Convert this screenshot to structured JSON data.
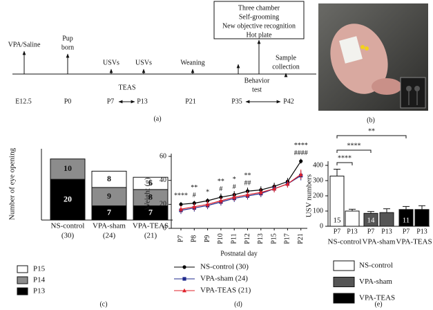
{
  "timeline": {
    "top_labels": [
      [
        "VPA/Saline"
      ],
      [
        "Pup",
        "born"
      ],
      [
        "USVs"
      ],
      [
        "USVs"
      ],
      [
        "Weaning"
      ],
      [
        "Sample",
        "collection"
      ]
    ],
    "time_labels": [
      "E12.5",
      "P0",
      "P7",
      "P13",
      "P21",
      "P35",
      "P42"
    ],
    "treatment": "TEAS",
    "behavior": [
      "Behavior",
      "test"
    ],
    "behavior_box": [
      "Three chamber",
      "Self-grooming",
      "New objective recognition",
      "Hot plate"
    ]
  },
  "panel_labels": [
    "(a)",
    "(b)",
    "(c)",
    "(d)",
    "(e)"
  ],
  "chart_data": [
    {
      "type": "stacked_bar",
      "ylabel": "Number of eye opening",
      "categories": [
        "NS-control",
        "VPA-sham",
        "VPA-TEAS"
      ],
      "category_counts": [
        "(30)",
        "(24)",
        "(21)"
      ],
      "ylim": [
        0,
        35
      ],
      "series": [
        {
          "name": "P13",
          "color": "#000000",
          "values": [
            20,
            7,
            7
          ]
        },
        {
          "name": "P14",
          "color": "#8c8c8c",
          "values": [
            10,
            9,
            8
          ]
        },
        {
          "name": "P15",
          "color": "#ffffff",
          "values": [
            0,
            8,
            6
          ]
        }
      ]
    },
    {
      "type": "line",
      "xlabel": "Postnatal day",
      "ylabel": "Weight (g)",
      "categories": [
        "P7",
        "P8",
        "P9",
        "P10",
        "P11",
        "P12",
        "P13",
        "P15",
        "P17",
        "P21"
      ],
      "ylim": [
        0,
        60
      ],
      "yticks": [
        0,
        20,
        40,
        60
      ],
      "series": [
        {
          "name": "NS-control (30)",
          "color": "#000000",
          "marker": "circle",
          "values": [
            20,
            21,
            23,
            26,
            28,
            31,
            32,
            35,
            39,
            56
          ],
          "errors": [
            2,
            2,
            2,
            3,
            3,
            3,
            3,
            3,
            3,
            2
          ]
        },
        {
          "name": "VPA-sham (24)",
          "color": "#1f2a8c",
          "marker": "square",
          "values": [
            15,
            17,
            19,
            22,
            25,
            27,
            29,
            33,
            37,
            44
          ],
          "errors": [
            3,
            3,
            3,
            3,
            3,
            3,
            3,
            3,
            3,
            4
          ]
        },
        {
          "name": "VPA-TEAS (21)",
          "color": "#e0202a",
          "marker": "triangle",
          "values": [
            16,
            18,
            20,
            23,
            26,
            28,
            30,
            33,
            37,
            45
          ],
          "errors": [
            3,
            3,
            3,
            3,
            3,
            3,
            3,
            3,
            3,
            4
          ]
        }
      ],
      "annotations": {
        "stars": [
          "****",
          "**",
          "*",
          "**",
          "*",
          "**",
          null,
          null,
          null,
          "****"
        ],
        "hashes": [
          null,
          "#",
          null,
          "#",
          "#",
          "##",
          null,
          null,
          null,
          "####"
        ]
      }
    },
    {
      "type": "grouped_bar",
      "ylabel": "USV numbers",
      "categories": [
        "P7",
        "P13"
      ],
      "ylim": [
        0,
        400
      ],
      "yticks": [
        0,
        100,
        200,
        300,
        400
      ],
      "series": [
        {
          "name": "NS-control",
          "color": "#ffffff",
          "values": [
            330,
            100
          ],
          "errors": [
            45,
            12
          ],
          "n_label": "15"
        },
        {
          "name": "VPA-sham",
          "color": "#555555",
          "values": [
            85,
            90
          ],
          "errors": [
            12,
            25
          ],
          "n_label": "14"
        },
        {
          "name": "VPA-TEAS",
          "color": "#000000",
          "values": [
            110,
            110
          ],
          "errors": [
            20,
            25
          ],
          "n_label": "11"
        }
      ],
      "significance": [
        "**",
        "****",
        "****"
      ]
    }
  ]
}
